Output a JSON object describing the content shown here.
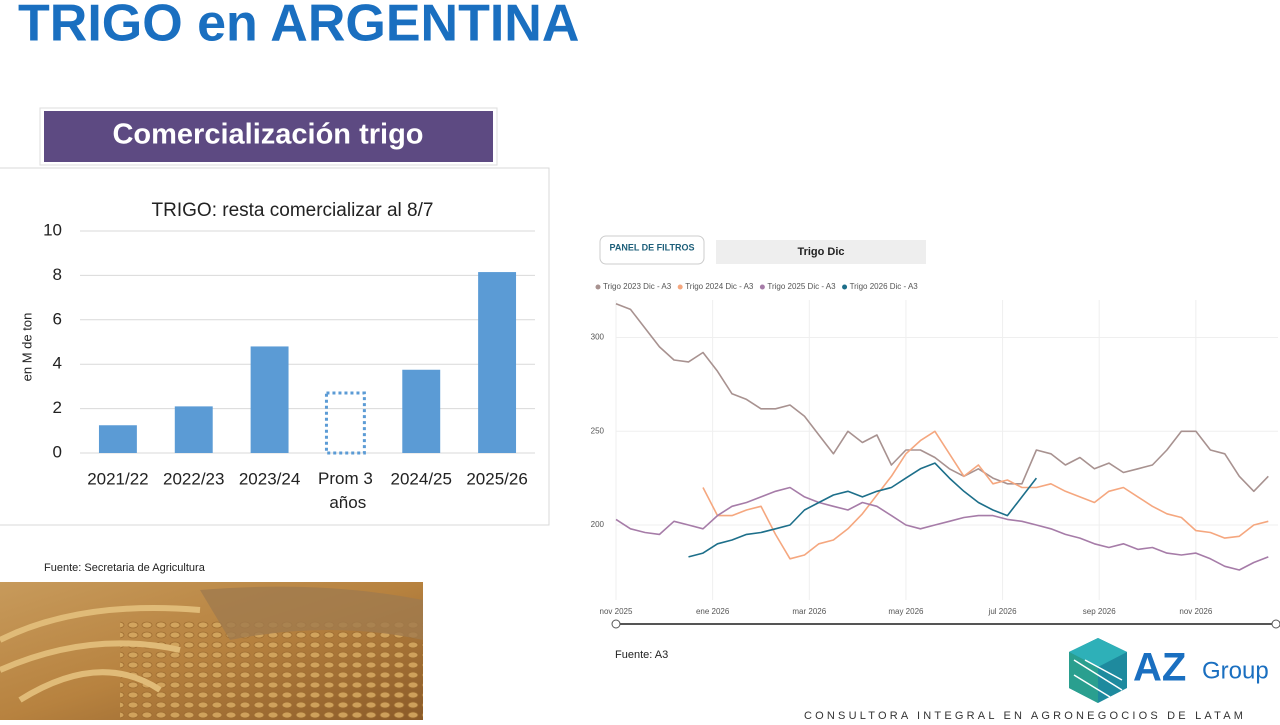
{
  "title": "TRIGO en ARGENTINA",
  "section_header": "Comercialización trigo",
  "source_left": "Fuente: Secretaria de Agricultura",
  "source_right": "Fuente: A3",
  "filter_button": "PANEL DE FILTROS",
  "filter_value": "Trigo Dic",
  "logo": {
    "mark": "AZ",
    "word": "Group",
    "tagline": "CONSULTORA INTEGRAL EN AGRONEGOCIOS DE LATAM"
  },
  "chart_data": [
    {
      "type": "bar",
      "title": "TRIGO: resta comercializar al 8/7",
      "y_label": "en M de ton",
      "categories": [
        "2021/22",
        "2022/23",
        "2023/24",
        "Prom 3 años",
        "2024/25",
        "2025/26"
      ],
      "values": [
        1.25,
        2.1,
        4.8,
        2.7,
        3.75,
        8.15
      ],
      "bar_styles": [
        "solid",
        "solid",
        "solid",
        "dotted",
        "solid",
        "solid"
      ],
      "color": "#5b9bd5",
      "ylim": [
        0,
        10
      ],
      "yticks": [
        0,
        2,
        4,
        6,
        8,
        10
      ],
      "grid": true
    },
    {
      "type": "line",
      "x": [
        0,
        0.3,
        0.6,
        0.9,
        1.2,
        1.5,
        1.8,
        2.1,
        2.4,
        2.7,
        3.0,
        3.3,
        3.6,
        3.9,
        4.2,
        4.5,
        4.8,
        5.1,
        5.4,
        5.7,
        6.0,
        6.3,
        6.6,
        6.9,
        7.2,
        7.5,
        7.8,
        8.1,
        8.4,
        8.7,
        9.0,
        9.3,
        9.6,
        9.9,
        10.2,
        10.5,
        10.8,
        11.1,
        11.4,
        11.7,
        12.0,
        12.3,
        12.6,
        12.9,
        13.2,
        13.5
      ],
      "series": [
        {
          "name": "Trigo 2023 Dic - A3",
          "color": "#a89290",
          "values": [
            318,
            315,
            305,
            295,
            288,
            287,
            292,
            282,
            270,
            267,
            262,
            262,
            264,
            258,
            248,
            238,
            250,
            244,
            248,
            232,
            240,
            240,
            236,
            230,
            226,
            230,
            225,
            222,
            222,
            240,
            238,
            232,
            236,
            230,
            233,
            228,
            230,
            232,
            240,
            250,
            250,
            240,
            238,
            226,
            218,
            226
          ]
        },
        {
          "name": "Trigo 2024 Dic - A3",
          "color": "#f5a77f",
          "values": [
            null,
            null,
            null,
            null,
            null,
            null,
            220,
            205,
            205,
            208,
            210,
            195,
            182,
            184,
            190,
            192,
            198,
            206,
            216,
            226,
            238,
            245,
            250,
            238,
            226,
            232,
            222,
            224,
            220,
            220,
            222,
            218,
            215,
            212,
            218,
            220,
            215,
            210,
            206,
            204,
            197,
            196,
            193,
            194,
            200,
            202
          ]
        },
        {
          "name": "Trigo 2025 Dic - A3",
          "color": "#a67ca8",
          "values": [
            203,
            198,
            196,
            195,
            202,
            200,
            198,
            205,
            210,
            212,
            215,
            218,
            220,
            215,
            212,
            210,
            208,
            212,
            210,
            205,
            200,
            198,
            200,
            202,
            204,
            205,
            205,
            203,
            202,
            200,
            198,
            195,
            193,
            190,
            188,
            190,
            187,
            188,
            185,
            184,
            185,
            182,
            178,
            176,
            180,
            183
          ]
        },
        {
          "name": "Trigo 2026 Dic - A3",
          "color": "#1d6f8a",
          "values": [
            null,
            null,
            null,
            null,
            null,
            183,
            185,
            190,
            192,
            195,
            196,
            198,
            200,
            208,
            212,
            216,
            218,
            215,
            218,
            220,
            225,
            230,
            233,
            225,
            218,
            212,
            208,
            205,
            215,
            225,
            null,
            null,
            null,
            null,
            null,
            null,
            null,
            null,
            null,
            null,
            null,
            null,
            null,
            null,
            null,
            null
          ]
        }
      ],
      "xlim": [
        0,
        13.7
      ],
      "xticks": [
        {
          "value": 0,
          "label": "nov 2025"
        },
        {
          "value": 2,
          "label": "ene 2026"
        },
        {
          "value": 4,
          "label": "mar 2026"
        },
        {
          "value": 6,
          "label": "may 2026"
        },
        {
          "value": 8,
          "label": "jul 2026"
        },
        {
          "value": 10,
          "label": "sep 2026"
        },
        {
          "value": 12,
          "label": "nov 2026"
        }
      ],
      "ylim": [
        160,
        320
      ],
      "yticks": [
        200,
        250,
        300
      ],
      "grid": true
    }
  ]
}
